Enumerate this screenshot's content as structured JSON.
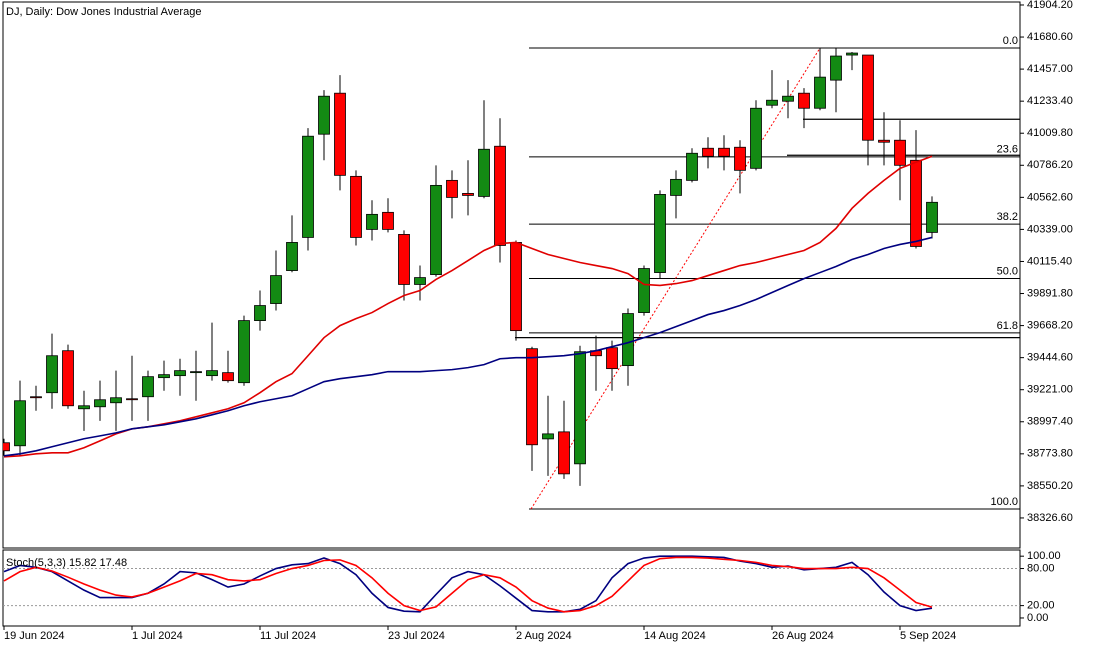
{
  "chart_data": [
    {
      "type": "candlestick",
      "title": "DJ, Daily:  Dow Jones Industrial Average",
      "categories": [
        "19 Jun 2024",
        null,
        null,
        null,
        null,
        null,
        null,
        null,
        "1 Jul 2024",
        null,
        null,
        null,
        null,
        null,
        null,
        null,
        "11 Jul 2024",
        null,
        null,
        null,
        null,
        null,
        null,
        null,
        "23 Jul 2024",
        null,
        null,
        null,
        null,
        null,
        null,
        null,
        "2 Aug 2024",
        null,
        null,
        null,
        null,
        null,
        null,
        null,
        "14 Aug 2024",
        null,
        null,
        null,
        null,
        null,
        null,
        null,
        "26 Aug 2024",
        null,
        null,
        null,
        null,
        null,
        null,
        null,
        "5 Sep 2024",
        null,
        null
      ],
      "open": [
        38851,
        38830,
        39172,
        39200,
        39493,
        39088,
        39102,
        39130,
        39158,
        39172,
        39305,
        39319,
        39340,
        39319,
        39340,
        39270,
        39703,
        39822,
        40052,
        40283,
        41003,
        41289,
        40709,
        40339,
        40458,
        40304,
        39955,
        40024,
        40681,
        40590,
        40569,
        40919,
        40248,
        39507,
        38878,
        38927,
        38704,
        39493,
        39514,
        39389,
        39759,
        40038,
        40576,
        40681,
        40905,
        40905,
        40912,
        40765,
        41205,
        41233,
        41289,
        41184,
        41380,
        41555,
        41555,
        40961,
        40961,
        40821,
        40318
      ],
      "high": [
        38879,
        39284,
        39249,
        39612,
        39535,
        39214,
        39284,
        39354,
        39458,
        39354,
        39424,
        39437,
        39493,
        39689,
        39493,
        39738,
        39913,
        40192,
        40437,
        41045,
        41310,
        41415,
        40751,
        40542,
        40556,
        40332,
        40087,
        40786,
        40751,
        40821,
        41240,
        41114,
        40262,
        39521,
        39179,
        39144,
        39528,
        39598,
        39563,
        39787,
        40087,
        40611,
        40751,
        40905,
        40982,
        40996,
        40961,
        41240,
        41450,
        41380,
        41324,
        41604,
        41604,
        41576,
        41555,
        41156,
        41100,
        41031,
        40569
      ],
      "low": [
        38760,
        38760,
        39074,
        39088,
        39088,
        38934,
        39004,
        38934,
        39004,
        39004,
        39214,
        39179,
        39144,
        39284,
        39270,
        39249,
        39633,
        39773,
        40040,
        40192,
        40821,
        40611,
        40227,
        40262,
        40318,
        39843,
        39843,
        40010,
        40416,
        40437,
        40556,
        40108,
        39563,
        38655,
        38620,
        38599,
        38550,
        39214,
        39214,
        39249,
        39738,
        39996,
        40416,
        40667,
        40765,
        40751,
        40590,
        40751,
        41184,
        41114,
        41045,
        41170,
        41156,
        41450,
        40786,
        40786,
        40542,
        40206,
        40276
      ],
      "close": [
        38795,
        39144,
        39165,
        39458,
        39109,
        39109,
        39151,
        39165,
        39151,
        39312,
        39326,
        39354,
        39347,
        39354,
        39284,
        39703,
        39808,
        40017,
        40248,
        40989,
        41268,
        40716,
        40283,
        40444,
        40339,
        39955,
        40003,
        40646,
        40562,
        40576,
        40898,
        40227,
        39633,
        38837,
        38913,
        38634,
        39486,
        39458,
        39368,
        39752,
        40066,
        40583,
        40688,
        40870,
        40849,
        40849,
        40751,
        41184,
        41240,
        41268,
        41184,
        41401,
        41548,
        41569,
        40961,
        40947,
        40786,
        40220,
        40528
      ],
      "up_color": "#138a13",
      "down_color": "#ff0000",
      "moving_averages": [
        {
          "color": "#e00000",
          "values": [
            38753,
            38760,
            38774,
            38781,
            38781,
            38816,
            38864,
            38913,
            38948,
            38962,
            38983,
            39004,
            39032,
            39060,
            39088,
            39130,
            39200,
            39277,
            39333,
            39458,
            39584,
            39668,
            39717,
            39759,
            39822,
            39878,
            39913,
            39990,
            40052,
            40122,
            40192,
            40241,
            40248,
            40206,
            40164,
            40136,
            40108,
            40087,
            40066,
            40031,
            39955,
            39948,
            39961,
            39982,
            40017,
            40052,
            40087,
            40108,
            40136,
            40164,
            40192,
            40248,
            40346,
            40486,
            40590,
            40681,
            40765,
            40807,
            40849
          ]
        },
        {
          "color": "#000080",
          "values": [
            38760,
            38774,
            38795,
            38823,
            38851,
            38879,
            38899,
            38920,
            38948,
            38962,
            38976,
            38997,
            39018,
            39046,
            39074,
            39109,
            39137,
            39158,
            39179,
            39228,
            39277,
            39298,
            39312,
            39326,
            39347,
            39347,
            39347,
            39354,
            39361,
            39375,
            39396,
            39437,
            39444,
            39444,
            39451,
            39458,
            39472,
            39493,
            39521,
            39549,
            39584,
            39619,
            39661,
            39703,
            39745,
            39773,
            39808,
            39850,
            39899,
            39948,
            39996,
            40038,
            40080,
            40129,
            40164,
            40206,
            40234,
            40255,
            40283
          ]
        }
      ],
      "fibonacci": {
        "high": 41604,
        "low": 38389,
        "color": "#000000",
        "trend_color": "#ff0000",
        "levels": [
          {
            "value": 0,
            "label": "0.0"
          },
          23.6,
          38.2,
          {
            "value": 50,
            "label": "50.0"
          },
          61.8,
          {
            "value": 100,
            "label": "100.0"
          }
        ]
      },
      "horizontal_lines": [
        41107,
        40856,
        39584
      ],
      "ylim": [
        38117,
        41925
      ],
      "yticks": [
        {
          "value": 41904.2,
          "label": "41904.20"
        },
        {
          "value": 41680.6,
          "label": "41680.60"
        },
        {
          "value": 41457,
          "label": "41457.00"
        },
        {
          "value": 41233.4,
          "label": "41233.40"
        },
        {
          "value": 41009.8,
          "label": "41009.80"
        },
        {
          "value": 40786.2,
          "label": "40786.20"
        },
        {
          "value": 40562.6,
          "label": "40562.60"
        },
        {
          "value": 40339,
          "label": "40339.00"
        },
        {
          "value": 40115.4,
          "label": "40115.40"
        },
        {
          "value": 39891.8,
          "label": "39891.80"
        },
        {
          "value": 39668.2,
          "label": "39668.20"
        },
        {
          "value": 39444.6,
          "label": "39444.60"
        },
        {
          "value": 39221,
          "label": "39221.00"
        },
        {
          "value": 38997.4,
          "label": "38997.40"
        },
        {
          "value": 38773.8,
          "label": "38773.80"
        },
        {
          "value": 38550.2,
          "label": "38550.20"
        },
        {
          "value": 38326.6,
          "label": "38326.60"
        }
      ]
    },
    {
      "type": "line",
      "title": "Stoch(5,3,3) 15.82 17.48",
      "series": [
        {
          "color": "#000080",
          "values": [
            75,
            85,
            82,
            75,
            60,
            45,
            33,
            33,
            33,
            40,
            55,
            75,
            73,
            62,
            50,
            55,
            68,
            80,
            86,
            88,
            97,
            88,
            70,
            40,
            17,
            11,
            10,
            38,
            65,
            75,
            70,
            52,
            32,
            12,
            10,
            10,
            14,
            28,
            65,
            88,
            97,
            100,
            100,
            100,
            99,
            98,
            92,
            88,
            82,
            84,
            78,
            80,
            82,
            90,
            70,
            42,
            20,
            12,
            15.82
          ]
        },
        {
          "color": "#ff0000",
          "values": [
            60,
            75,
            82,
            76,
            66,
            55,
            45,
            37,
            34,
            40,
            50,
            60,
            72,
            70,
            62,
            60,
            62,
            72,
            80,
            85,
            93,
            94,
            85,
            65,
            40,
            20,
            12,
            18,
            40,
            62,
            70,
            65,
            50,
            28,
            16,
            10,
            12,
            20,
            35,
            60,
            85,
            96,
            98,
            98,
            97,
            95,
            93,
            90,
            85,
            83,
            80,
            80,
            80,
            82,
            80,
            65,
            45,
            25,
            17.48
          ]
        }
      ],
      "levels": [
        80,
        20
      ],
      "ylim": [
        -13,
        110
      ],
      "yticks": [
        {
          "value": 100,
          "label": "100.00"
        },
        {
          "value": 80,
          "label": "80.00"
        },
        {
          "value": 20,
          "label": "20.00"
        },
        {
          "value": 0,
          "label": "0.00"
        }
      ]
    }
  ]
}
